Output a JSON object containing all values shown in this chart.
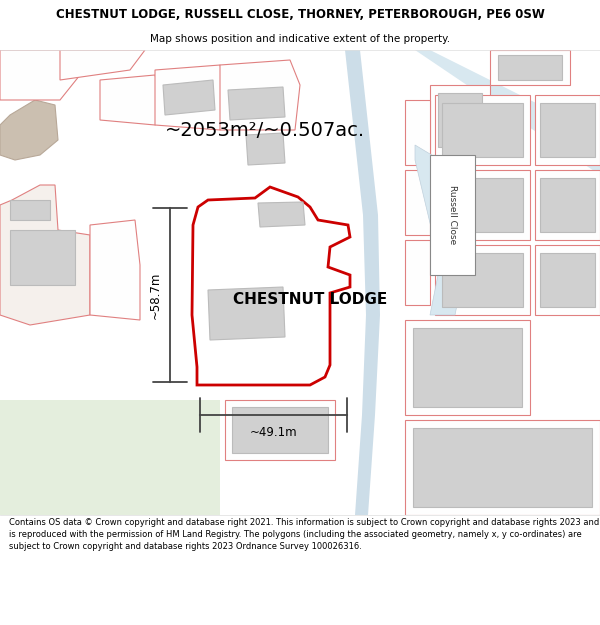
{
  "title_line1": "CHESTNUT LODGE, RUSSELL CLOSE, THORNEY, PETERBOROUGH, PE6 0SW",
  "title_line2": "Map shows position and indicative extent of the property.",
  "area_text": "~2053m²/~0.507ac.",
  "label_width": "~49.1m",
  "label_height": "~58.7m",
  "property_label": "CHESTNUT LODGE",
  "russell_close_label": "Russell Close",
  "footer_text": "Contains OS data © Crown copyright and database right 2021. This information is subject to Crown copyright and database rights 2023 and is reproduced with the permission of HM Land Registry. The polygons (including the associated geometry, namely x, y co-ordinates) are subject to Crown copyright and database rights 2023 Ordnance Survey 100026316.",
  "map_bg": "#f8f8f5",
  "road_color": "#ccdde8",
  "road_color2": "#d8e8f0",
  "plot_outline_color": "#cc0000",
  "building_fill": "#d0d0d0",
  "building_edge": "#bbbbbb",
  "other_plot_edge": "#e08080",
  "other_plot_fill": "#fefefe",
  "dim_line_color": "#444444",
  "green_area": "#e4eedd",
  "brown_area": "#d8c8b8",
  "header_bg": "#ffffff",
  "footer_bg": "#ffffff"
}
